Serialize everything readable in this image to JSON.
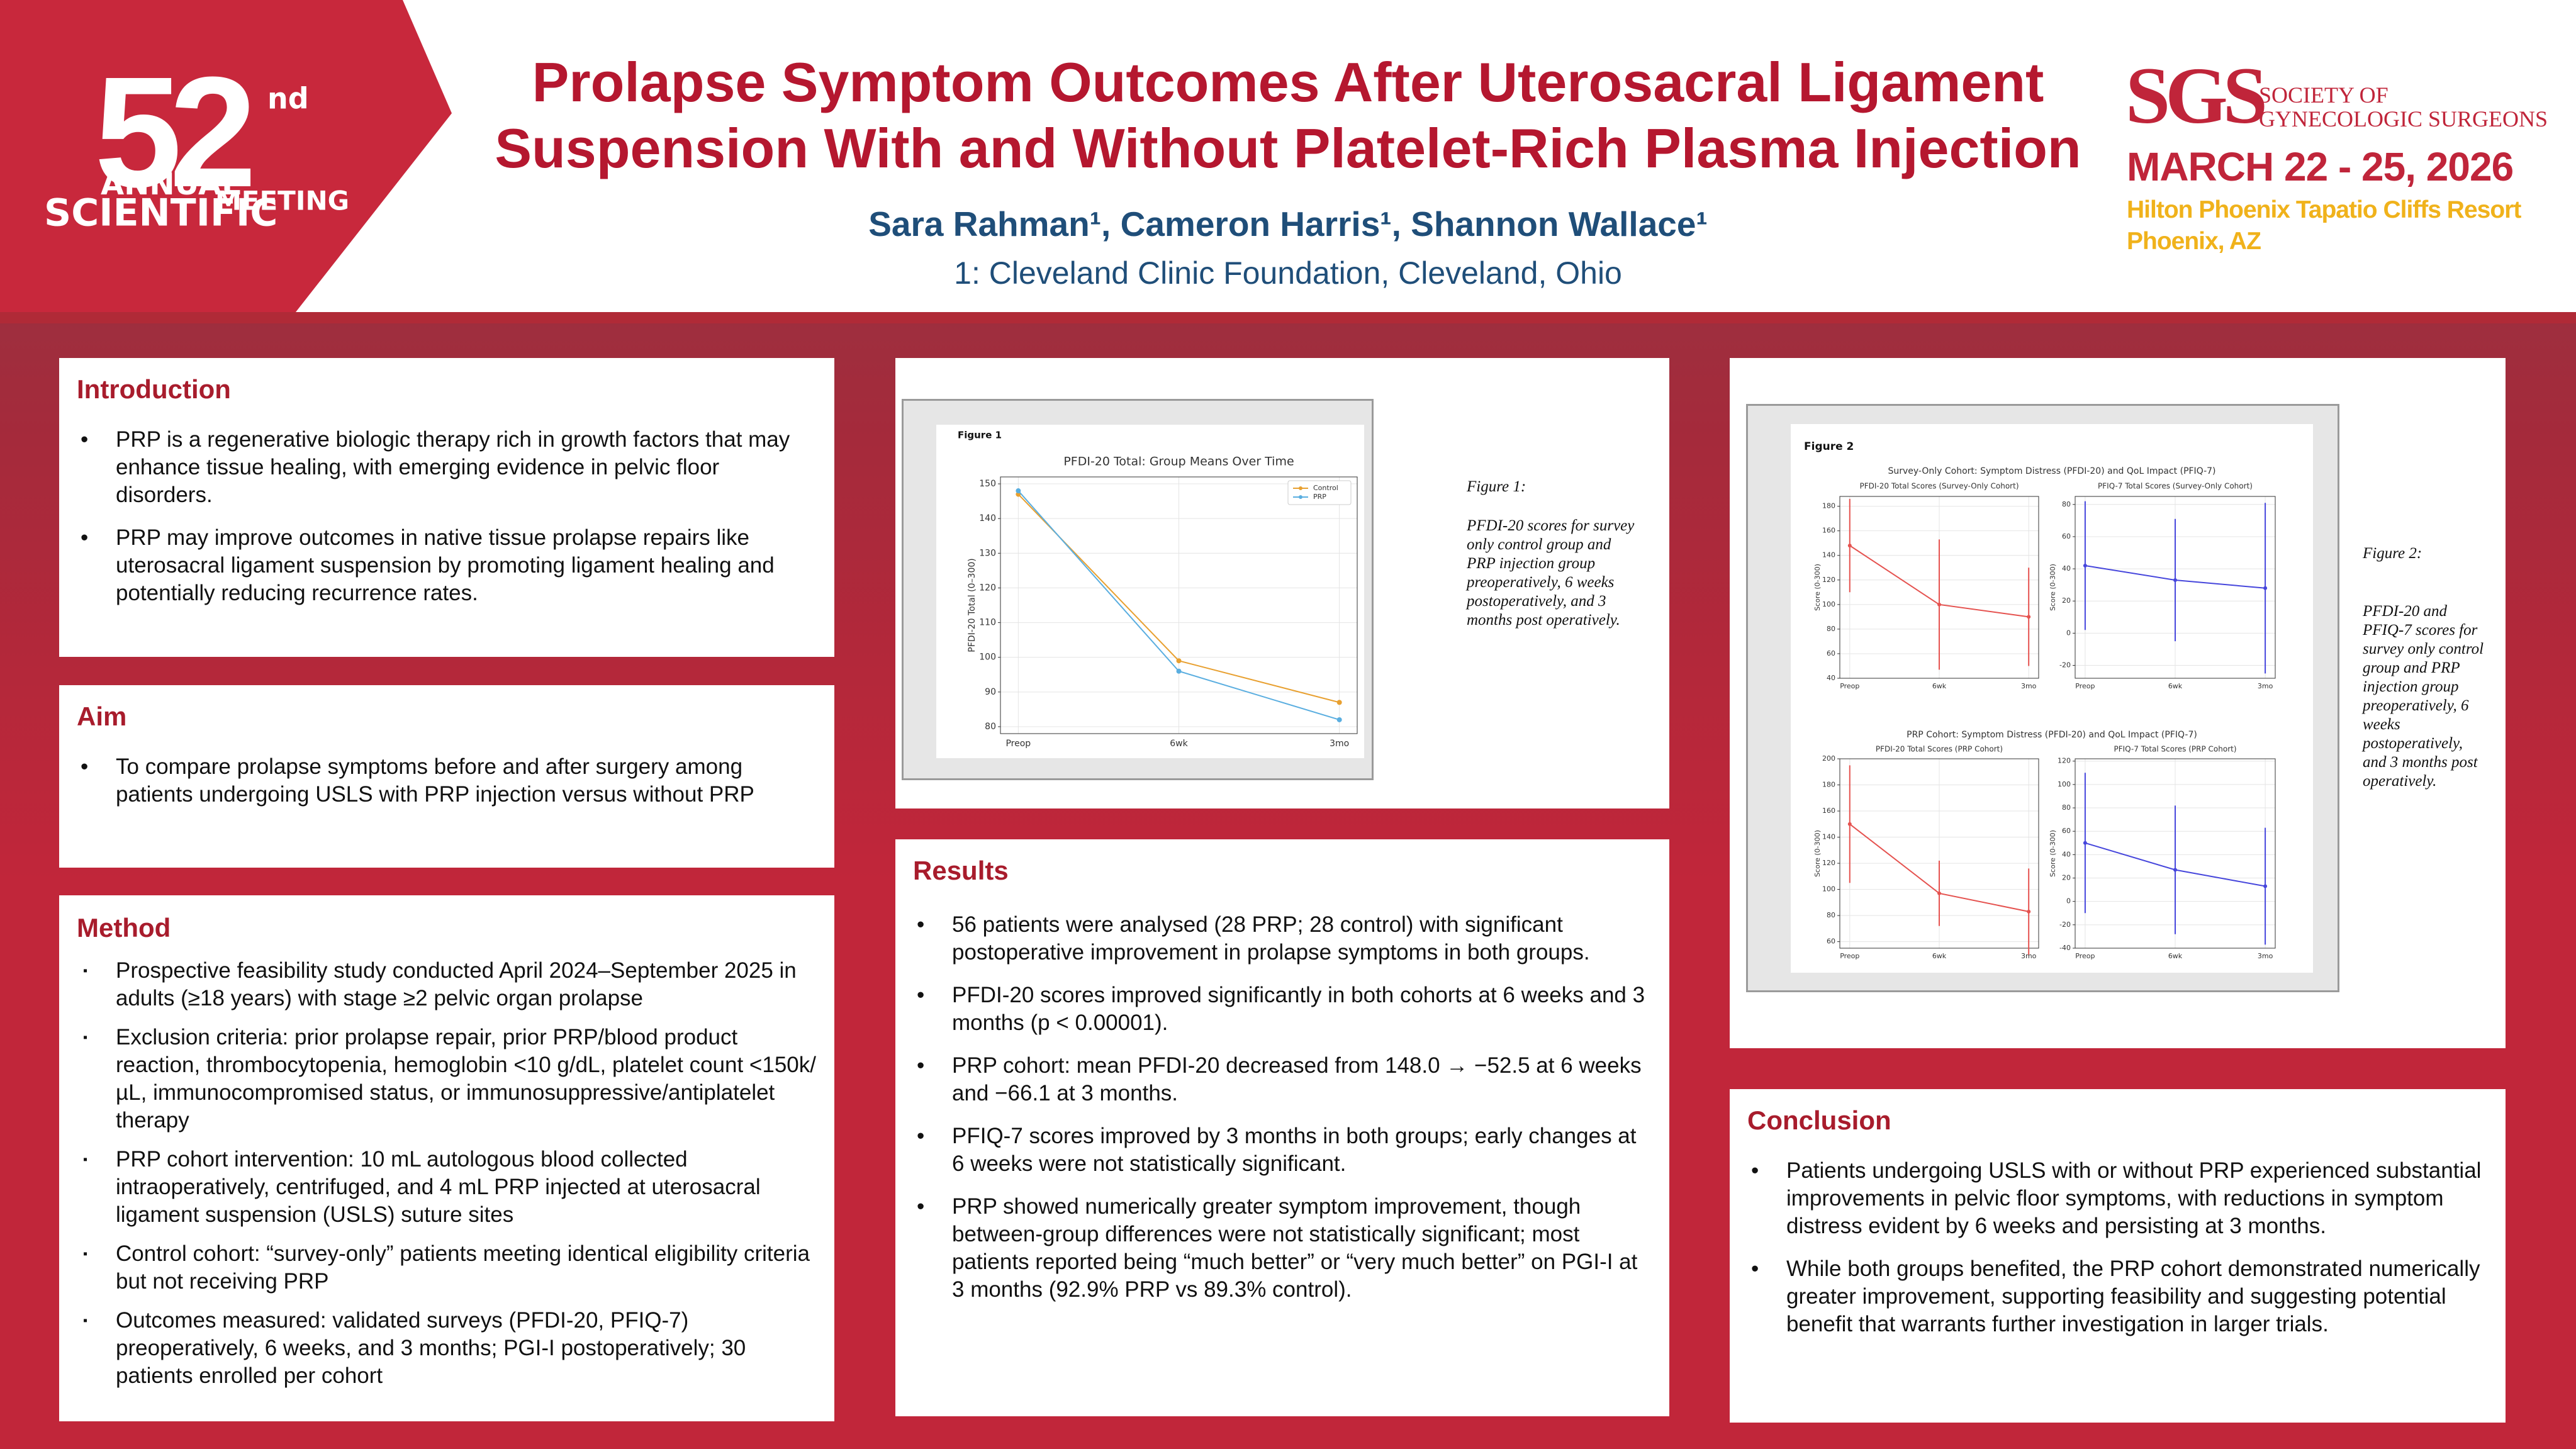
{
  "header": {
    "logo": {
      "number": "52",
      "suffix": "nd",
      "line1": "ANNUAL",
      "line2": "SCIENTIFIC",
      "line3": "MEETING"
    },
    "title": [
      "Prolapse Symptom Outcomes After Uterosacral Ligament",
      "Suspension With and Without Platelet-Rich Plasma Injection"
    ],
    "authors": "Sara Rahman¹, Cameron Harris¹, Shannon Wallace¹",
    "affiliation": "1: Cleveland Clinic Foundation, Cleveland, Ohio",
    "society": {
      "acronym": "SGS",
      "name": [
        "SOCIETY OF",
        "GYNECOLOGIC SURGEONS"
      ],
      "dates": "MARCH 22 - 25, 2026",
      "venue": "Hilton Phoenix Tapatio Cliffs Resort",
      "city": "Phoenix, AZ"
    }
  },
  "sections": {
    "introduction": {
      "heading": "Introduction",
      "items": [
        "PRP is a regenerative biologic therapy rich in growth factors that may enhance tissue healing, with emerging evidence in pelvic floor disorders.",
        "PRP may improve outcomes in native tissue prolapse repairs like uterosacral ligament suspension by promoting ligament healing and potentially reducing recurrence rates."
      ]
    },
    "aim": {
      "heading": "Aim",
      "items": [
        "To compare prolapse symptoms before and after surgery among patients undergoing USLS with PRP injection versus without PRP"
      ]
    },
    "method": {
      "heading": "Method",
      "items": [
        "Prospective feasibility study conducted April 2024–September 2025 in adults (≥18 years) with stage ≥2 pelvic organ prolapse",
        "Exclusion criteria: prior prolapse repair, prior PRP/blood product reaction, thrombocytopenia, hemoglobin <10 g/dL, platelet count <150k/µL, immunocompromised status, or immunosuppressive/antiplatelet therapy",
        "PRP cohort intervention: 10 mL autologous blood collected intraoperatively, centrifuged, and 4 mL PRP injected at uterosacral ligament suspension (USLS) suture sites",
        "Control cohort: “survey-only” patients meeting identical eligibility criteria but not receiving PRP",
        "Outcomes measured: validated surveys (PFDI-20, PFIQ-7) preoperatively, 6 weeks, and 3 months; PGI-I postoperatively; 30 patients enrolled per cohort"
      ]
    },
    "results": {
      "heading": "Results",
      "items": [
        "56 patients were analysed (28 PRP; 28 control) with significant postoperative improvement in prolapse symptoms in both groups.",
        "PFDI-20 scores improved significantly in both cohorts at 6 weeks and 3 months (p < 0.00001).",
        "PRP cohort: mean PFDI-20 decreased from 148.0 → −52.5 at 6 weeks and −66.1 at 3 months.",
        "PFIQ-7 scores improved by 3 months in both groups; early changes at 6 weeks were not statistically significant.",
        "PRP showed numerically greater symptom improvement, though between-group differences were not statistically significant; most patients reported being “much better” or “very much better” on PGI-I at 3 months (92.9% PRP vs 89.3% control)."
      ]
    },
    "conclusion": {
      "heading": "Conclusion",
      "items": [
        "Patients undergoing USLS with or without PRP experienced substantial improvements in pelvic floor symptoms, with reductions in symptom distress evident by 6 weeks and persisting at 3 months.",
        "While both groups benefited, the PRP cohort demonstrated numerically greater improvement, supporting feasibility and suggesting potential benefit that warrants further investigation in larger trials."
      ]
    }
  },
  "figures": [
    {
      "label": "Figure 1",
      "caption_title": "Figure 1:",
      "caption": "PFDI-20 scores for survey only control group and PRP injection group preoperatively, 6 weeks postoperatively, and 3 months post operatively."
    },
    {
      "label": "Figure 2",
      "panel_titles": [
        "Survey-Only Cohort: Symptom Distress (PFDI-20) and QoL Impact (PFIQ-7)",
        "PRP Cohort: Symptom Distress (PFDI-20) and QoL Impact (PFIQ-7)"
      ],
      "caption_title": "Figure 2:",
      "caption": "PFDI-20 and PFIQ-7 scores for survey only control group and PRP injection group preoperatively, 6 weeks postoperatively, and 3 months post operatively."
    }
  ],
  "chart_data": [
    {
      "type": "line",
      "title": "PFDI-20 Total: Group Means Over Time",
      "y_label": "PFDI-20 Total (0–300)",
      "categories": [
        "Preop",
        "6wk",
        "3mo"
      ],
      "series": [
        {
          "name": "Control",
          "color": "#e8a030",
          "values": [
            147,
            99,
            87
          ]
        },
        {
          "name": "PRP",
          "color": "#5aaee0",
          "values": [
            148,
            96,
            82
          ]
        }
      ],
      "ylim": [
        78,
        152
      ],
      "yticks": [
        80,
        90,
        100,
        110,
        120,
        130,
        140,
        150
      ],
      "grid": true,
      "legend": "upper-right"
    },
    {
      "type": "line",
      "title": "PFDI-20 Total Scores (Survey-Only Cohort)",
      "y_label": "Score (0-300)",
      "categories": [
        "Preop",
        "6wk",
        "3mo"
      ],
      "series": [
        {
          "color": "#e5524f",
          "values": [
            148,
            100,
            90
          ],
          "errors": [
            38,
            53,
            40
          ]
        }
      ],
      "ylim": [
        40,
        188
      ],
      "yticks": [
        40,
        60,
        80,
        100,
        120,
        140,
        160,
        180
      ],
      "grid": true
    },
    {
      "type": "line",
      "title": "PFIQ-7 Total Scores (Survey-Only Cohort)",
      "y_label": "Score (0-300)",
      "categories": [
        "Preop",
        "6wk",
        "3mo"
      ],
      "series": [
        {
          "color": "#4646dc",
          "values": [
            42,
            33,
            28
          ],
          "errors": [
            40,
            38,
            53
          ]
        }
      ],
      "ylim": [
        -28,
        85
      ],
      "yticks": [
        -20,
        0,
        20,
        40,
        60,
        80
      ],
      "grid": true
    },
    {
      "type": "line",
      "title": "PFDI-20 Total Scores (PRP Cohort)",
      "y_label": "Score (0-300)",
      "categories": [
        "Preop",
        "6wk",
        "3mo"
      ],
      "series": [
        {
          "color": "#e5524f",
          "values": [
            150,
            97,
            83
          ],
          "errors": [
            45,
            25,
            33
          ]
        }
      ],
      "ylim": [
        55,
        200
      ],
      "yticks": [
        60,
        80,
        100,
        120,
        140,
        160,
        180,
        200
      ],
      "grid": true
    },
    {
      "type": "line",
      "title": "PFIQ-7 Total Scores (PRP Cohort)",
      "y_label": "Score (0-300)",
      "categories": [
        "Preop",
        "6wk",
        "3mo"
      ],
      "series": [
        {
          "color": "#4646dc",
          "values": [
            50,
            27,
            13
          ],
          "errors": [
            60,
            55,
            50
          ]
        }
      ],
      "ylim": [
        -40,
        122
      ],
      "yticks": [
        -40,
        -20,
        0,
        20,
        40,
        60,
        80,
        100,
        120
      ],
      "grid": true
    }
  ]
}
